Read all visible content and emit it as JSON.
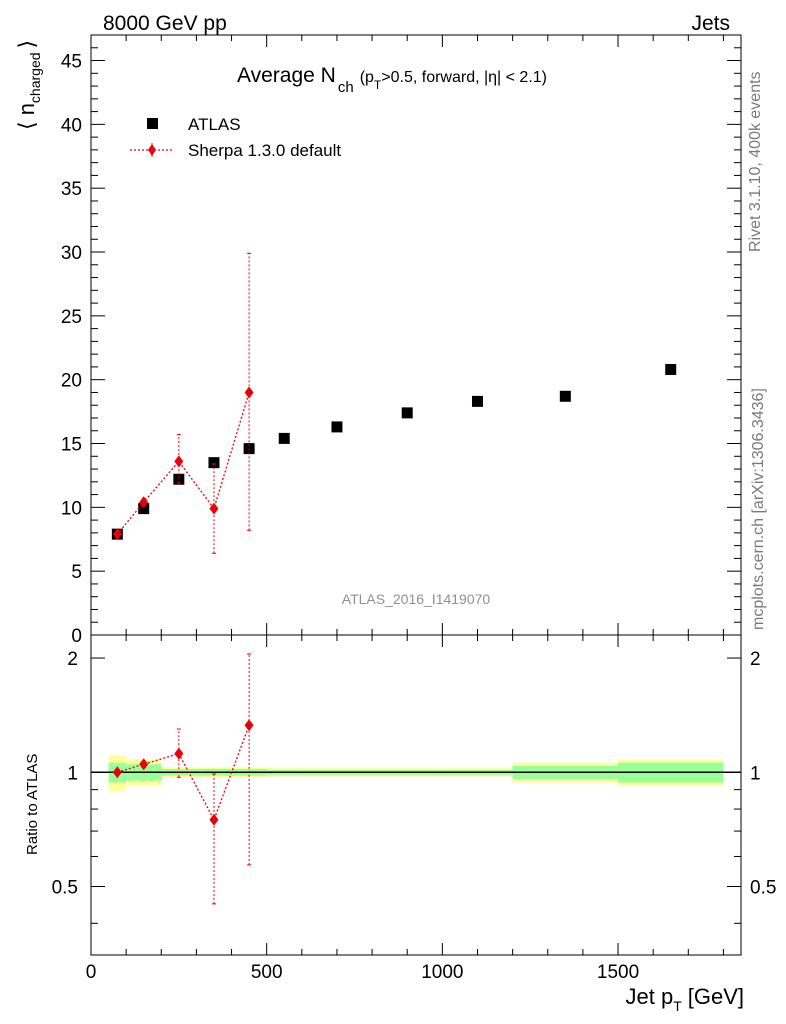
{
  "header": {
    "left": "8000 GeV pp",
    "right": "Jets"
  },
  "side_text": {
    "top": "Rivet 3.1.10,  400k events",
    "bottom": "mcplots.cern.ch [arXiv:1306.3436]"
  },
  "plot_title": {
    "main": "Average N",
    "sub": "ch",
    "cond_open": "(p",
    "cond_sub": "T",
    "cond_rest": ">0.5, forward, |η| < 2.1)"
  },
  "watermark": "ATLAS_2016_I1419070",
  "colors": {
    "data": "#000000",
    "mc": "#e8000b",
    "band_green": "#99ff99",
    "band_yellow": "#ffff99"
  },
  "chart_data": {
    "type": "scatter",
    "xlabel_main": "Jet p",
    "xlabel_sub": "T",
    "xlabel_unit": "[GeV]",
    "ylabel_main": "⟨ n",
    "ylabel_sub": "charged",
    "ylabel_close": "⟩",
    "ratio_ylabel": "Ratio to ATLAS",
    "xlim": [
      0,
      1850
    ],
    "ylim": [
      0,
      47
    ],
    "ratio_ylim": [
      0.33,
      2.3
    ],
    "ratio_scale": "log",
    "x_ticks": [
      {
        "value": 0,
        "label": "0"
      },
      {
        "value": 500,
        "label": "500"
      },
      {
        "value": 1000,
        "label": "1000"
      },
      {
        "value": 1500,
        "label": "1500"
      }
    ],
    "y_ticks": [
      {
        "value": 0,
        "label": "0"
      },
      {
        "value": 5,
        "label": "5"
      },
      {
        "value": 10,
        "label": "10"
      },
      {
        "value": 15,
        "label": "15"
      },
      {
        "value": 20,
        "label": "20"
      },
      {
        "value": 25,
        "label": "25"
      },
      {
        "value": 30,
        "label": "30"
      },
      {
        "value": 35,
        "label": "35"
      },
      {
        "value": 40,
        "label": "40"
      },
      {
        "value": 45,
        "label": "45"
      }
    ],
    "ratio_ticks": [
      {
        "value": 0.5,
        "label": "0.5"
      },
      {
        "value": 1,
        "label": "1"
      },
      {
        "value": 2,
        "label": "2"
      }
    ],
    "legend_position": "top-left",
    "series": [
      {
        "name": "ATLAS",
        "marker": "square",
        "points": [
          {
            "x": 75,
            "xlo": 50,
            "xhi": 100,
            "y": 7.9
          },
          {
            "x": 150,
            "xlo": 100,
            "xhi": 200,
            "y": 9.9
          },
          {
            "x": 250,
            "xlo": 200,
            "xhi": 300,
            "y": 12.2
          },
          {
            "x": 350,
            "xlo": 300,
            "xhi": 400,
            "y": 13.5
          },
          {
            "x": 450,
            "xlo": 400,
            "xhi": 500,
            "y": 14.6
          },
          {
            "x": 550,
            "xlo": 500,
            "xhi": 600,
            "y": 15.4
          },
          {
            "x": 700,
            "xlo": 600,
            "xhi": 800,
            "y": 16.3
          },
          {
            "x": 900,
            "xlo": 800,
            "xhi": 1000,
            "y": 17.4
          },
          {
            "x": 1100,
            "xlo": 1000,
            "xhi": 1200,
            "y": 18.3
          },
          {
            "x": 1350,
            "xlo": 1200,
            "xhi": 1500,
            "y": 18.7
          },
          {
            "x": 1650,
            "xlo": 1500,
            "xhi": 1800,
            "y": 20.8
          }
        ],
        "ratio_band_stat": [
          0.06,
          0.05,
          0.02,
          0.02,
          0.02,
          0.015,
          0.015,
          0.015,
          0.015,
          0.04,
          0.06
        ],
        "ratio_band_total": [
          0.11,
          0.08,
          0.03,
          0.03,
          0.03,
          0.025,
          0.025,
          0.025,
          0.025,
          0.06,
          0.08
        ]
      },
      {
        "name": "Sherpa 1.3.0 default",
        "marker": "diamond",
        "points": [
          {
            "x": 75,
            "y": 7.9,
            "ylo": 7.6,
            "yhi": 8.2
          },
          {
            "x": 150,
            "y": 10.4,
            "ylo": 10.1,
            "yhi": 10.7
          },
          {
            "x": 250,
            "y": 13.6,
            "ylo": 11.9,
            "yhi": 15.7
          },
          {
            "x": 350,
            "y": 9.9,
            "ylo": 6.4,
            "yhi": 13.4
          },
          {
            "x": 450,
            "y": 19.0,
            "ylo": 8.2,
            "yhi": 29.9
          }
        ],
        "ratio": [
          {
            "x": 75,
            "y": 1.0,
            "ylo": 0.99,
            "yhi": 1.01
          },
          {
            "x": 150,
            "y": 1.05,
            "ylo": 1.03,
            "yhi": 1.07
          },
          {
            "x": 250,
            "y": 1.12,
            "ylo": 0.97,
            "yhi": 1.3
          },
          {
            "x": 350,
            "y": 0.75,
            "ylo": 0.45,
            "yhi": 0.99
          },
          {
            "x": 450,
            "y": 1.33,
            "ylo": 0.57,
            "yhi": 2.05
          }
        ]
      }
    ]
  }
}
